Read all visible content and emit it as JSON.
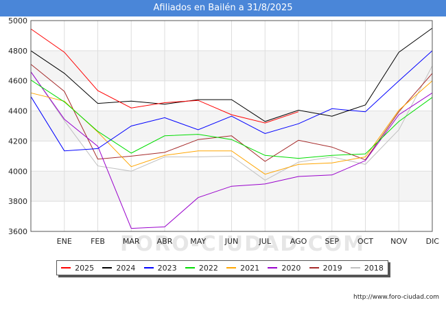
{
  "chart_data": {
    "type": "line",
    "title": "Afiliados en Bailén a 31/8/2025",
    "categories": [
      "",
      "ENE",
      "FEB",
      "MAR",
      "ABR",
      "MAY",
      "JUN",
      "JUL",
      "AGO",
      "SEP",
      "OCT",
      "NOV",
      "DIC"
    ],
    "ylim": [
      3600,
      5000
    ],
    "yticks": [
      3600,
      3800,
      4000,
      4200,
      4400,
      4600,
      4800,
      5000
    ],
    "grid": true,
    "legend_position": "bottom",
    "series": [
      {
        "name": "2025",
        "color": "#ff0000",
        "values": [
          4945,
          4790,
          4535,
          4420,
          4455,
          4470,
          4375,
          4320,
          4395,
          null,
          null,
          null,
          null
        ]
      },
      {
        "name": "2024",
        "color": "#000000",
        "values": [
          4800,
          4650,
          4450,
          4465,
          4445,
          4475,
          4475,
          4330,
          4405,
          4365,
          4440,
          4790,
          4950
        ]
      },
      {
        "name": "2023",
        "color": "#0000ff",
        "values": [
          4495,
          4135,
          4150,
          4300,
          4355,
          4275,
          4365,
          4250,
          4315,
          4415,
          4395,
          4600,
          4800
        ]
      },
      {
        "name": "2022",
        "color": "#00dd00",
        "values": [
          4605,
          4460,
          4265,
          4120,
          4235,
          4245,
          4210,
          4105,
          4085,
          4105,
          4115,
          4330,
          4490
        ]
      },
      {
        "name": "2021",
        "color": "#ffa500",
        "values": [
          4520,
          4465,
          4260,
          4030,
          4105,
          4135,
          4135,
          3980,
          4045,
          4055,
          4095,
          4405,
          4600
        ]
      },
      {
        "name": "2020",
        "color": "#9900cc",
        "values": [
          4660,
          4345,
          4165,
          3620,
          3630,
          3825,
          3900,
          3915,
          3965,
          3975,
          4070,
          4375,
          4520
        ]
      },
      {
        "name": "2019",
        "color": "#a52a2a",
        "values": [
          4710,
          4530,
          4080,
          4100,
          4125,
          4210,
          4235,
          4065,
          4205,
          4160,
          4075,
          4395,
          4650
        ]
      },
      {
        "name": "2018",
        "color": "#c0c0c0",
        "values": [
          4660,
          4335,
          4035,
          4000,
          4095,
          4095,
          4100,
          3940,
          4060,
          4095,
          4045,
          4275,
          4700
        ]
      }
    ]
  },
  "source_text": "http://www.foro-ciudad.com",
  "watermark_text": "FORO-CIUDAD.COM"
}
